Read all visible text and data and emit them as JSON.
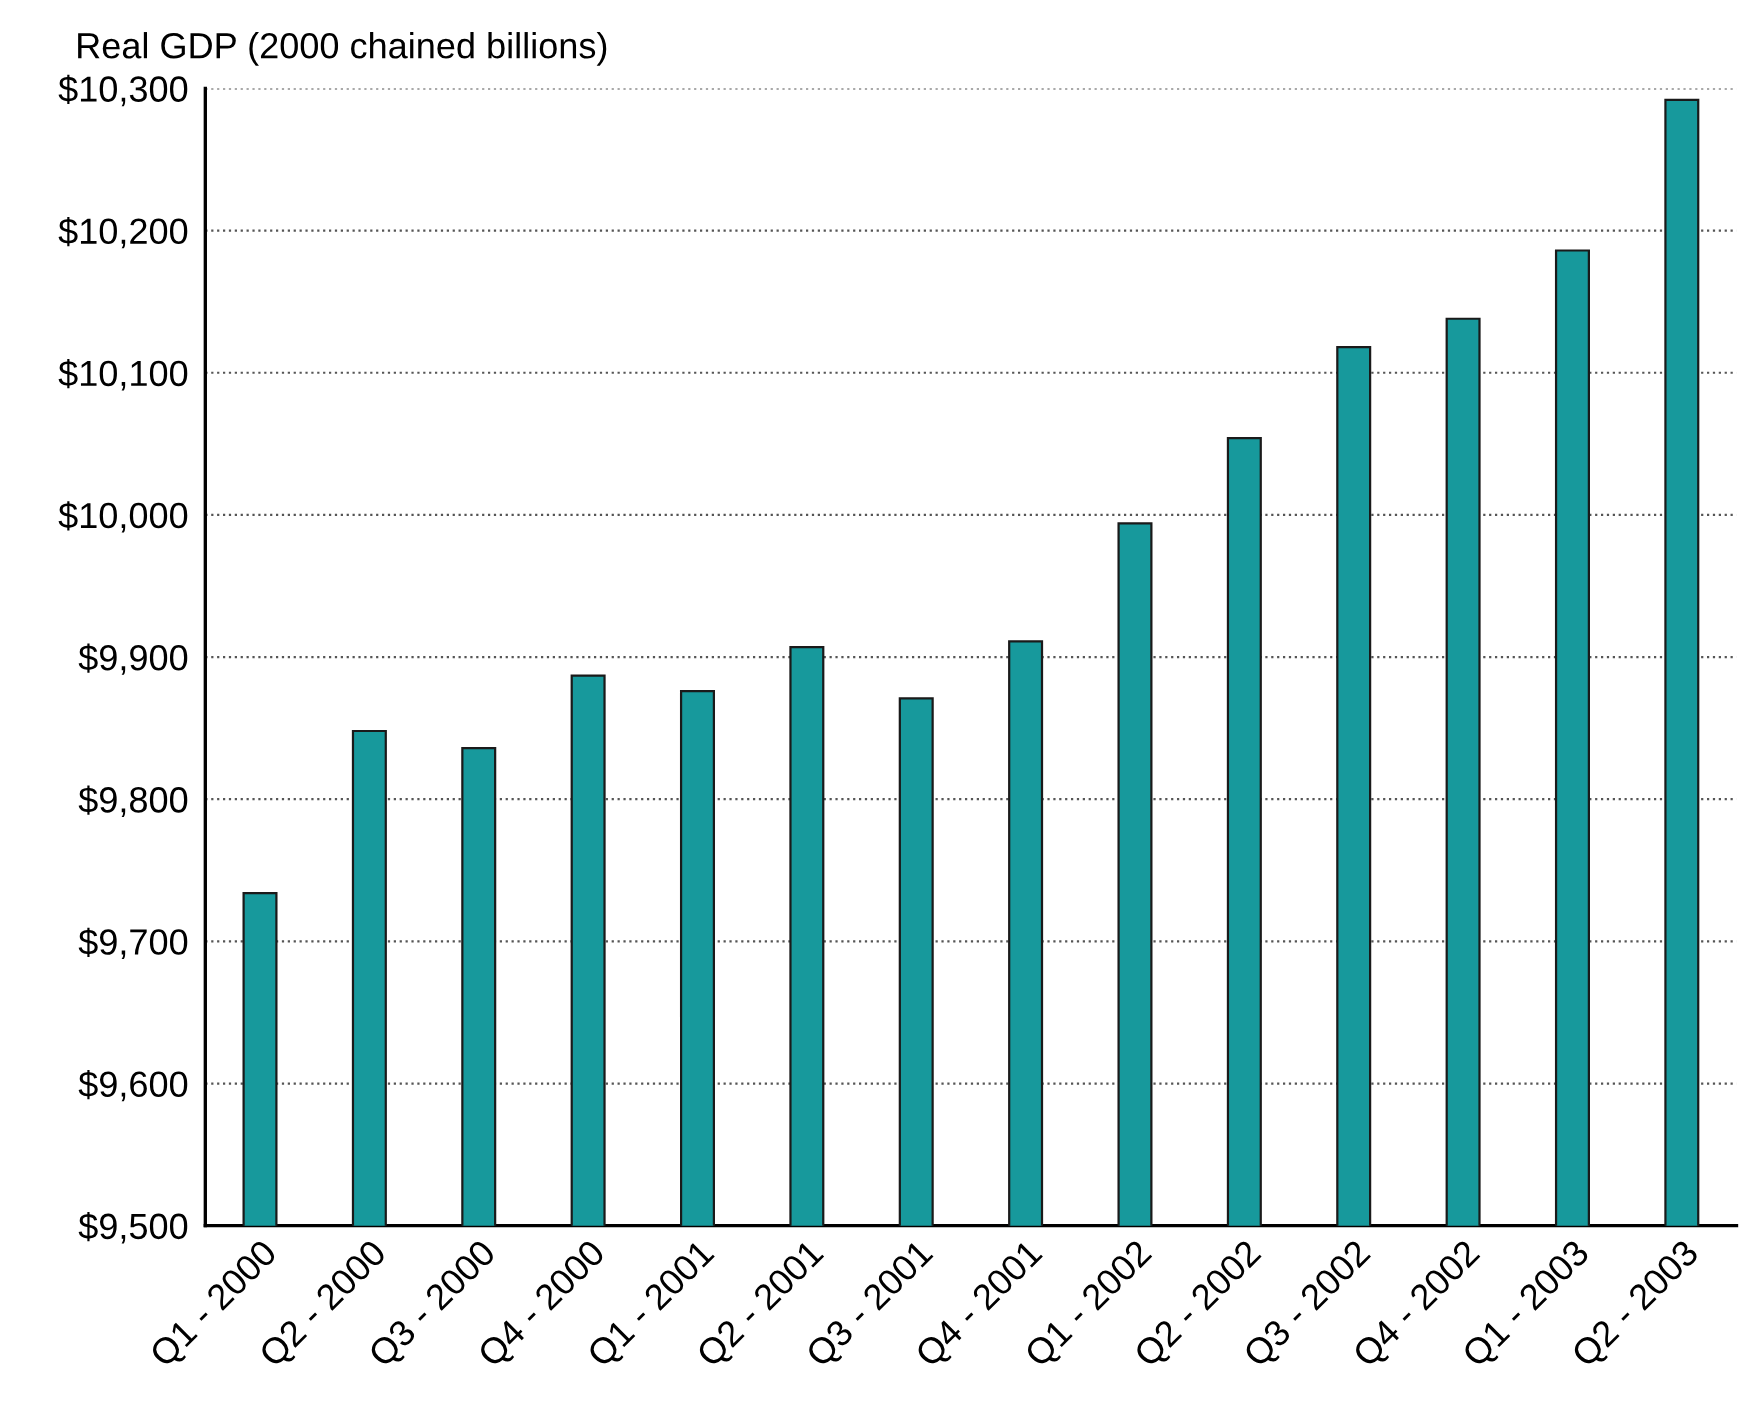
{
  "chart_data": {
    "type": "bar",
    "ylabel": "Real GDP (2000 chained billions)",
    "categories": [
      "Q1 - 2000",
      "Q2 - 2000",
      "Q3 - 2000",
      "Q4 - 2000",
      "Q1 - 2001",
      "Q2 - 2001",
      "Q3 - 2001",
      "Q4 - 2001",
      "Q1 - 2002",
      "Q2 - 2002",
      "Q3 - 2002",
      "Q4 - 2002",
      "Q1 - 2003",
      "Q2 - 2003"
    ],
    "values": [
      9734,
      9848,
      9836,
      9887,
      9876,
      9907,
      9871,
      9911,
      9994,
      10054,
      10118,
      10138,
      10186,
      10292
    ],
    "color": "#17999c",
    "ylim": [
      9500,
      10300
    ],
    "yticks": [
      {
        "value": 9500,
        "label": "$9,500"
      },
      {
        "value": 9600,
        "label": "$9,600"
      },
      {
        "value": 9700,
        "label": "$9,700"
      },
      {
        "value": 9800,
        "label": "$9,800"
      },
      {
        "value": 9900,
        "label": "$9,900"
      },
      {
        "value": 10000,
        "label": "$10,000"
      },
      {
        "value": 10100,
        "label": "$10,100"
      },
      {
        "value": 10200,
        "label": "$10,200"
      },
      {
        "value": 10300,
        "label": "$10,300"
      }
    ],
    "grid": "y"
  }
}
